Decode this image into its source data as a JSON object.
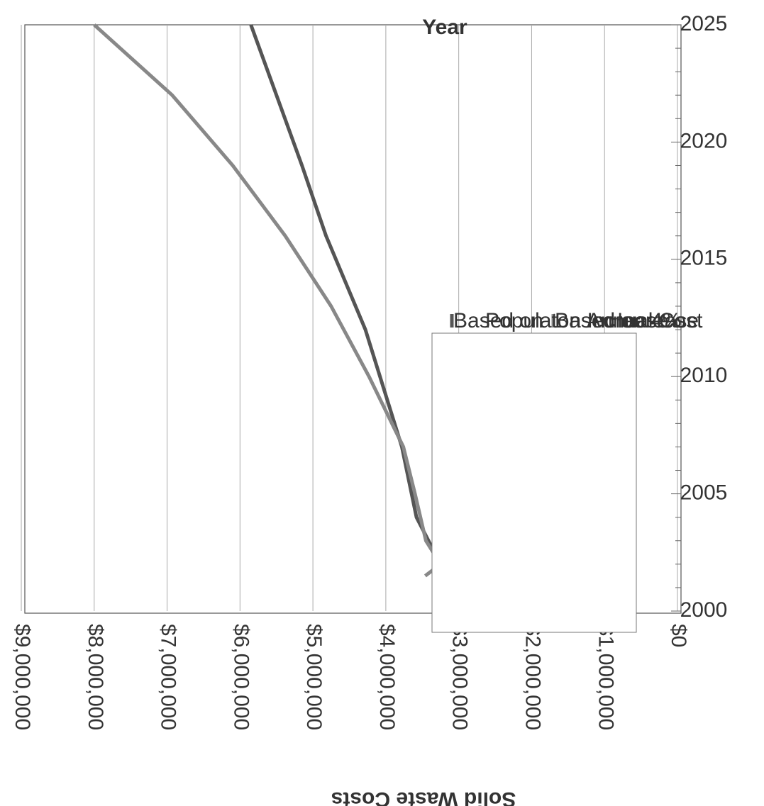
{
  "chart_data": {
    "type": "line",
    "orientation": "rotated 90 degrees clockwise (x-axis runs vertically)",
    "xlabel": "Year",
    "ylabel": "Solid Waste Costs",
    "xlim": [
      2000,
      2025
    ],
    "ylim": [
      0,
      9000000
    ],
    "x_ticks": [
      "2000",
      "2005",
      "2010",
      "2015",
      "2020",
      "2025"
    ],
    "y_ticks": [
      "$0",
      "$1,000,000",
      "$2,000,000",
      "$3,000,000",
      "$4,000,000",
      "$5,000,000",
      "$6,000,000",
      "$7,000,000",
      "$8,000,000",
      "$9,000,000"
    ],
    "grid": true,
    "legend_position": "right",
    "series": [
      {
        "name": "Based on Populaton Increase",
        "color": "#555555",
        "x": [
          2002,
          2004,
          2007,
          2012,
          2016,
          2019,
          2022,
          2025
        ],
        "y": [
          3250000,
          3580000,
          3780000,
          4280000,
          4820000,
          5150000,
          5500000,
          5850000
        ]
      },
      {
        "name": "Based on 4% Annual Cost Increase",
        "color": "#888888",
        "x": [
          2001.5,
          2002,
          2003,
          2005,
          2007,
          2010,
          2013,
          2016,
          2019,
          2022,
          2025
        ],
        "y": [
          3460000,
          3250000,
          3450000,
          3600000,
          3760000,
          4230000,
          4750000,
          5380000,
          6100000,
          6930000,
          8000000
        ]
      }
    ]
  },
  "legend": {
    "items": [
      {
        "lines": [
          "Based on",
          "Populaton Increase"
        ],
        "color": "#555555"
      },
      {
        "lines": [
          "Based on 4%",
          "Annual Cost",
          "Increase"
        ],
        "color": "#888888"
      }
    ]
  }
}
